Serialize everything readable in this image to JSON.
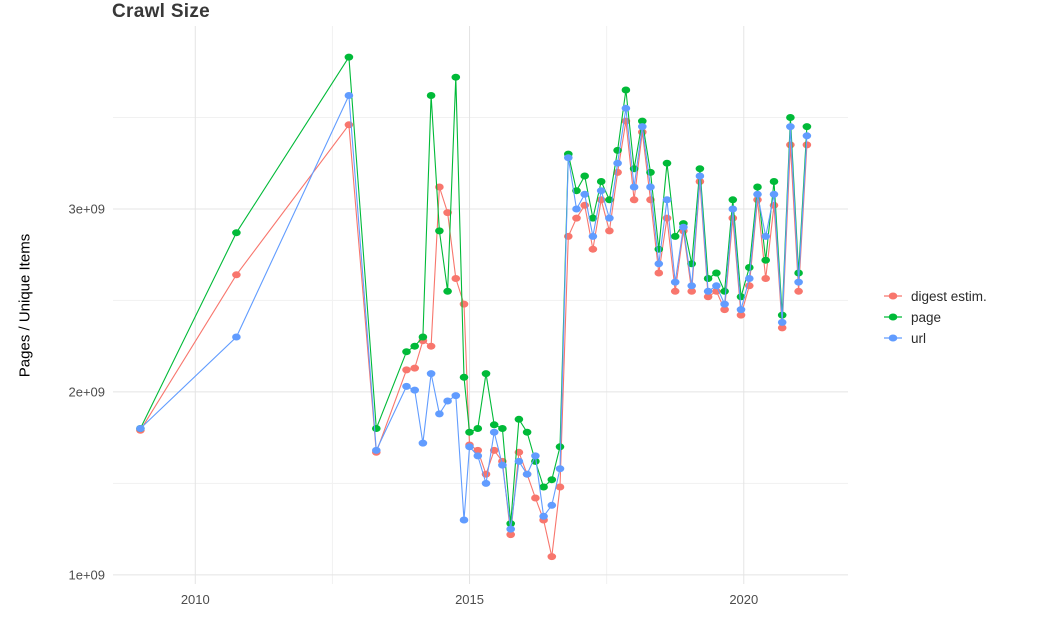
{
  "page": {
    "background_color": "#ffffff"
  },
  "chart_data": {
    "type": "line",
    "title": "Crawl Size",
    "xlabel": "",
    "ylabel": "Pages / Unique Items",
    "legend_position": "right",
    "grid": true,
    "point_shape": "filled-circle",
    "xlim": [
      2008.5,
      2021.9
    ],
    "ylim": [
      950000000.0,
      4000000000.0
    ],
    "x_ticks": [
      {
        "value": 2010,
        "label": "2010"
      },
      {
        "value": 2015,
        "label": "2015"
      },
      {
        "value": 2020,
        "label": "2020"
      }
    ],
    "y_ticks": [
      {
        "value": 1000000000.0,
        "label": "1e+09"
      },
      {
        "value": 2000000000.0,
        "label": "2e+09"
      },
      {
        "value": 3000000000.0,
        "label": "3e+09"
      }
    ],
    "x_minor": [
      2012.5,
      2017.5
    ],
    "y_minor": [
      1500000000.0,
      2500000000.0,
      3500000000.0
    ],
    "grid_major_color": "#e4e4e4",
    "grid_minor_color": "#f1f1f1",
    "x": [
      2009.0,
      2010.75,
      2012.8,
      2013.3,
      2013.85,
      2014.0,
      2014.15,
      2014.3,
      2014.45,
      2014.6,
      2014.75,
      2014.9,
      2015.0,
      2015.15,
      2015.3,
      2015.45,
      2015.6,
      2015.75,
      2015.9,
      2016.05,
      2016.2,
      2016.35,
      2016.5,
      2016.65,
      2016.8,
      2016.95,
      2017.1,
      2017.25,
      2017.4,
      2017.55,
      2017.7,
      2017.85,
      2018.0,
      2018.15,
      2018.3,
      2018.45,
      2018.6,
      2018.75,
      2018.9,
      2019.05,
      2019.2,
      2019.35,
      2019.5,
      2019.65,
      2019.8,
      2019.95,
      2020.1,
      2020.25,
      2020.4,
      2020.55,
      2020.7,
      2020.85,
      2021.0,
      2021.15
    ],
    "series": [
      {
        "name": "digest estim.",
        "color": "#F8766D",
        "values": [
          1790000000.0,
          2640000000.0,
          3460000000.0,
          1670000000.0,
          2120000000.0,
          2130000000.0,
          2280000000.0,
          2250000000.0,
          3120000000.0,
          2980000000.0,
          2620000000.0,
          2480000000.0,
          1710000000.0,
          1680000000.0,
          1550000000.0,
          1680000000.0,
          1620000000.0,
          1220000000.0,
          1670000000.0,
          1550000000.0,
          1420000000.0,
          1300000000.0,
          1100000000.0,
          1480000000.0,
          2850000000.0,
          2950000000.0,
          3020000000.0,
          2780000000.0,
          3050000000.0,
          2880000000.0,
          3200000000.0,
          3480000000.0,
          3050000000.0,
          3420000000.0,
          3050000000.0,
          2650000000.0,
          2950000000.0,
          2550000000.0,
          2880000000.0,
          2550000000.0,
          3150000000.0,
          2520000000.0,
          2550000000.0,
          2450000000.0,
          2950000000.0,
          2420000000.0,
          2580000000.0,
          3050000000.0,
          2620000000.0,
          3020000000.0,
          2350000000.0,
          3350000000.0,
          2550000000.0,
          3350000000.0
        ]
      },
      {
        "name": "page",
        "color": "#00BA38",
        "values": [
          1800000000.0,
          2870000000.0,
          3830000000.0,
          1800000000.0,
          2220000000.0,
          2250000000.0,
          2300000000.0,
          3620000000.0,
          2880000000.0,
          2550000000.0,
          3720000000.0,
          2080000000.0,
          1780000000.0,
          1800000000.0,
          2100000000.0,
          1820000000.0,
          1800000000.0,
          1280000000.0,
          1850000000.0,
          1780000000.0,
          1620000000.0,
          1480000000.0,
          1520000000.0,
          1700000000.0,
          3300000000.0,
          3100000000.0,
          3180000000.0,
          2950000000.0,
          3150000000.0,
          3050000000.0,
          3320000000.0,
          3650000000.0,
          3220000000.0,
          3480000000.0,
          3200000000.0,
          2780000000.0,
          3250000000.0,
          2850000000.0,
          2920000000.0,
          2700000000.0,
          3220000000.0,
          2620000000.0,
          2650000000.0,
          2550000000.0,
          3050000000.0,
          2520000000.0,
          2680000000.0,
          3120000000.0,
          2720000000.0,
          3150000000.0,
          2420000000.0,
          3500000000.0,
          2650000000.0,
          3450000000.0
        ]
      },
      {
        "name": "url",
        "color": "#619CFF",
        "values": [
          1800000000.0,
          2300000000.0,
          3620000000.0,
          1680000000.0,
          2030000000.0,
          2010000000.0,
          1720000000.0,
          2100000000.0,
          1880000000.0,
          1950000000.0,
          1980000000.0,
          1300000000.0,
          1700000000.0,
          1650000000.0,
          1500000000.0,
          1780000000.0,
          1600000000.0,
          1250000000.0,
          1620000000.0,
          1550000000.0,
          1650000000.0,
          1320000000.0,
          1380000000.0,
          1580000000.0,
          3280000000.0,
          3000000000.0,
          3080000000.0,
          2850000000.0,
          3100000000.0,
          2950000000.0,
          3250000000.0,
          3550000000.0,
          3120000000.0,
          3450000000.0,
          3120000000.0,
          2700000000.0,
          3050000000.0,
          2600000000.0,
          2900000000.0,
          2580000000.0,
          3180000000.0,
          2550000000.0,
          2580000000.0,
          2480000000.0,
          3000000000.0,
          2450000000.0,
          2620000000.0,
          3080000000.0,
          2850000000.0,
          3080000000.0,
          2380000000.0,
          3450000000.0,
          2600000000.0,
          3400000000.0
        ]
      }
    ]
  }
}
